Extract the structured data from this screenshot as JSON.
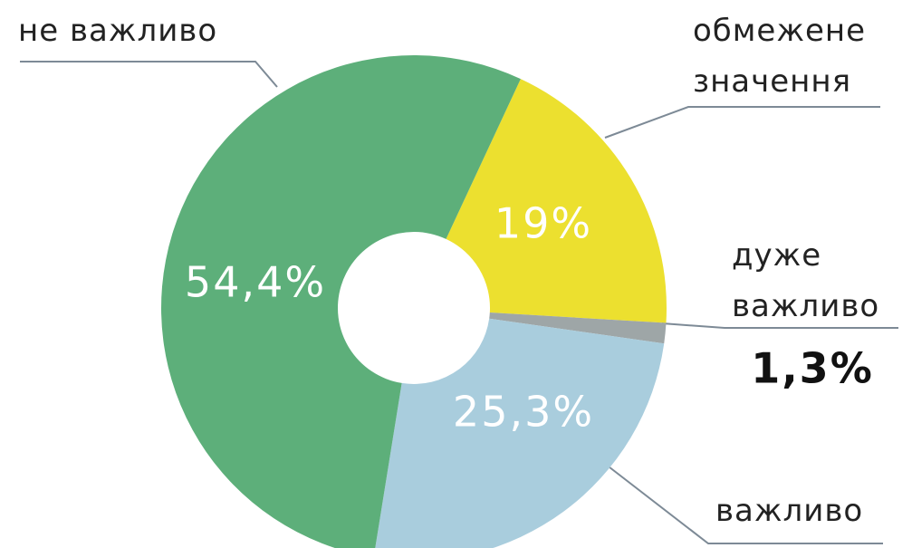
{
  "chart_data": {
    "type": "donut",
    "categories": [
      "обмежене\nзначення",
      "дуже\nважливо",
      "важливо",
      "не важливо"
    ],
    "values": [
      19,
      1.3,
      25.3,
      54.4
    ],
    "value_labels": [
      "19%",
      "1,3%",
      "25,3%",
      "54,4%"
    ],
    "colors": [
      "#ece02f",
      "#9ea6a7",
      "#a9cddd",
      "#5daf7a"
    ]
  }
}
